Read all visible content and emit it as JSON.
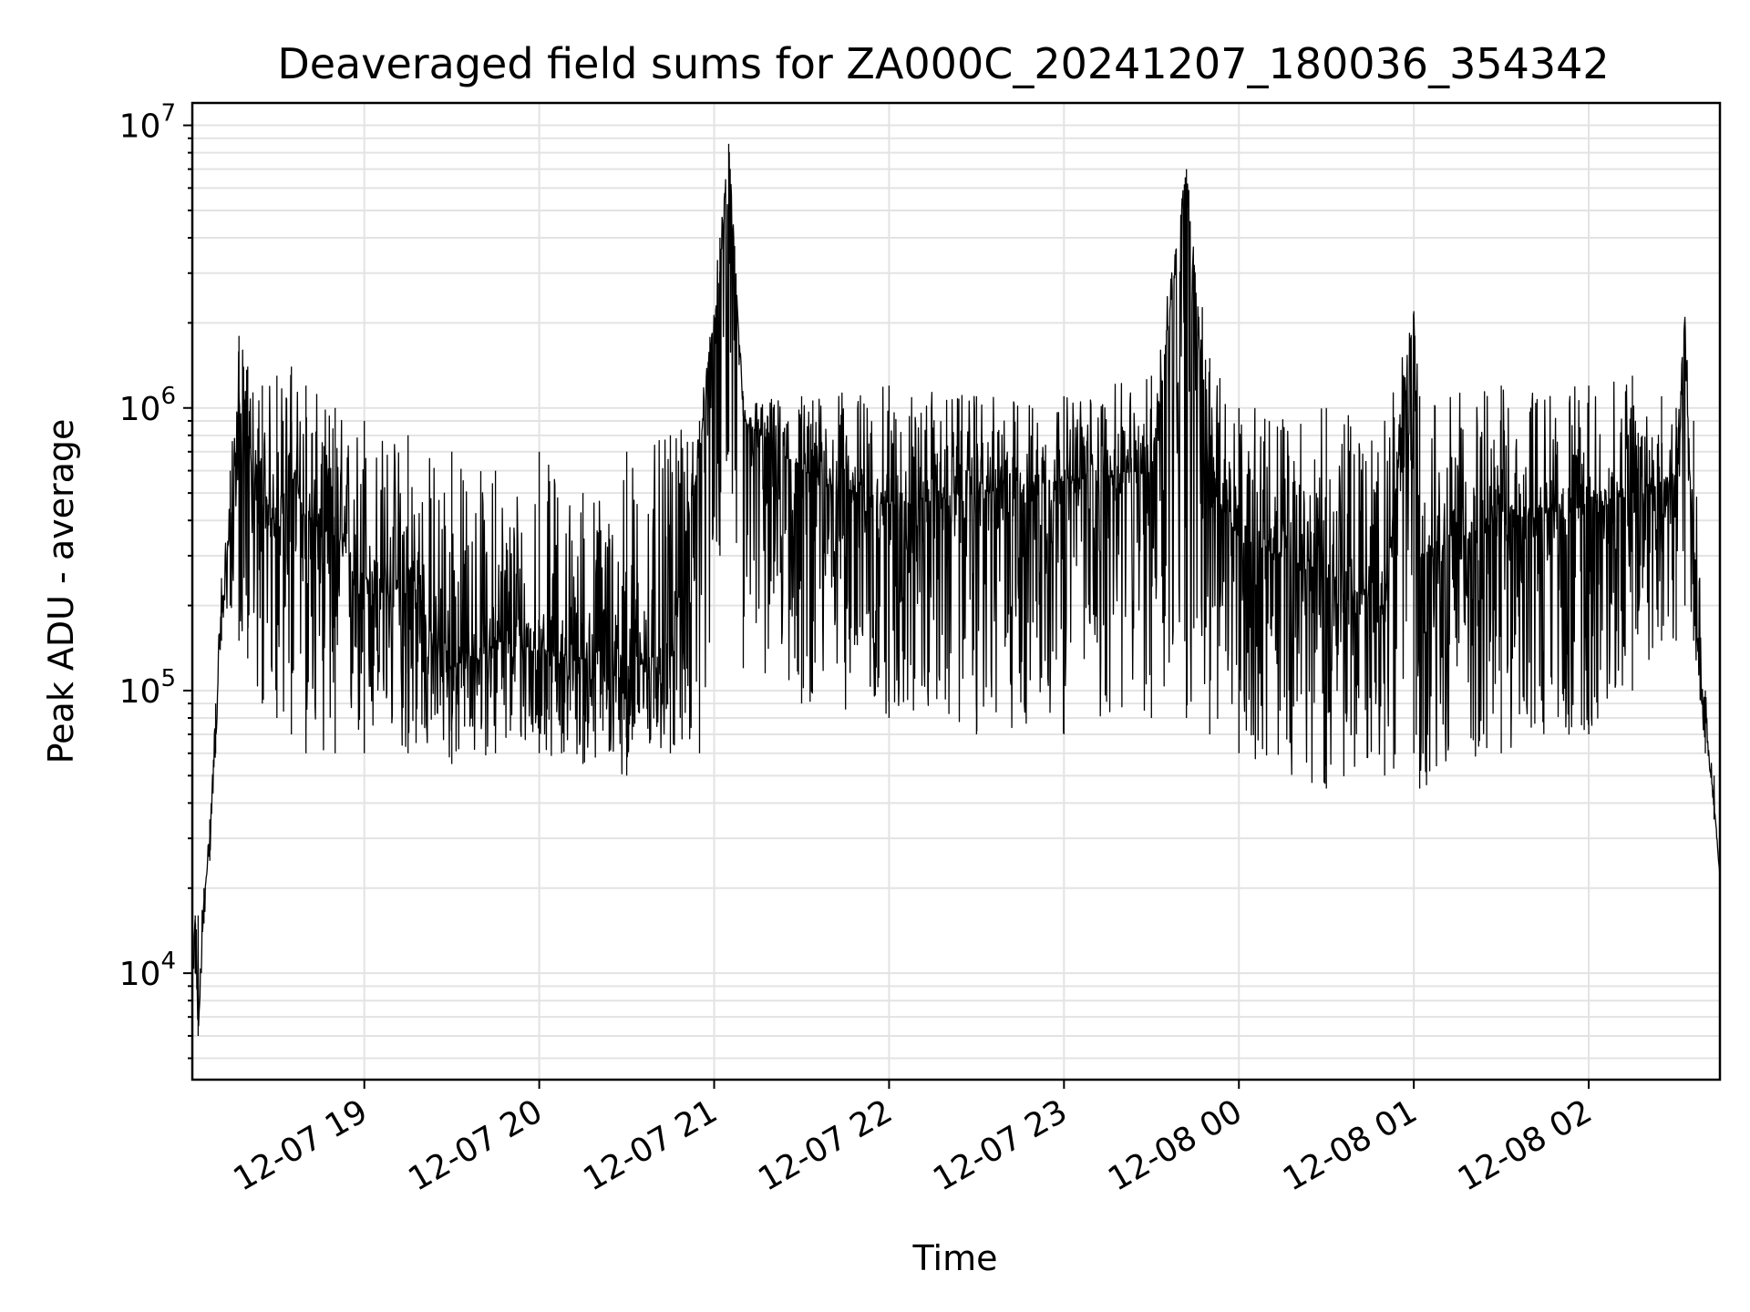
{
  "chart_data": {
    "type": "line",
    "title": "Deaveraged field sums for ZA000C_20241207_180036_354342",
    "xlabel": "Time",
    "ylabel": "Peak ADU - average",
    "yscale": "log",
    "ylim": [
      4200,
      12000000
    ],
    "xlim": [
      "2024-12-07 18:01",
      "2024-12-08 02:45"
    ],
    "x_ticks": [
      "12-07 19",
      "12-07 20",
      "12-07 21",
      "12-07 22",
      "12-07 23",
      "12-08 00",
      "12-08 01",
      "12-08 02"
    ],
    "y_ticks": [
      {
        "base": "10",
        "exp": "4"
      },
      {
        "base": "10",
        "exp": "5"
      },
      {
        "base": "10",
        "exp": "6"
      },
      {
        "base": "10",
        "exp": "7"
      }
    ],
    "grid": true,
    "line_color": "#000000",
    "series": [
      {
        "x": [
          "2024-12-07 18:01",
          "2024-12-07 18:02",
          "2024-12-07 18:03",
          "2024-12-07 18:05",
          "2024-12-07 18:07",
          "2024-12-07 18:09",
          "2024-12-07 18:11",
          "2024-12-07 18:14",
          "2024-12-07 18:17",
          "2024-12-07 18:20",
          "2024-12-07 18:25",
          "2024-12-07 18:30",
          "2024-12-07 18:35",
          "2024-12-07 18:40",
          "2024-12-07 18:50",
          "2024-12-07 19:00",
          "2024-12-07 19:15",
          "2024-12-07 19:30",
          "2024-12-07 19:45",
          "2024-12-07 20:00",
          "2024-12-07 20:15",
          "2024-12-07 20:30",
          "2024-12-07 20:45",
          "2024-12-07 20:55",
          "2024-12-07 21:02",
          "2024-12-07 21:05",
          "2024-12-07 21:10",
          "2024-12-07 21:30",
          "2024-12-07 22:00",
          "2024-12-07 22:30",
          "2024-12-07 23:00",
          "2024-12-07 23:30",
          "2024-12-07 23:42",
          "2024-12-07 23:50",
          "2024-12-08 00:00",
          "2024-12-08 00:30",
          "2024-12-08 00:50",
          "2024-12-08 01:00",
          "2024-12-08 01:02",
          "2024-12-08 01:30",
          "2024-12-08 02:00",
          "2024-12-08 02:15",
          "2024-12-08 02:25",
          "2024-12-08 02:30",
          "2024-12-08 02:33",
          "2024-12-08 02:36",
          "2024-12-08 02:40",
          "2024-12-08 02:43",
          "2024-12-08 02:45"
        ],
        "values": [
          10000,
          16000,
          6000,
          18000,
          30000,
          80000,
          180000,
          400000,
          1000000,
          800000,
          350000,
          450000,
          600000,
          400000,
          350000,
          250000,
          220000,
          120000,
          150000,
          140000,
          130000,
          120000,
          140000,
          700000,
          3000000,
          8600000,
          900000,
          600000,
          450000,
          500000,
          550000,
          600000,
          7000000,
          500000,
          350000,
          250000,
          200000,
          2200000,
          300000,
          400000,
          450000,
          500000,
          550000,
          600000,
          2100000,
          200000,
          80000,
          40000,
          22000
        ],
        "envelope_low": [
          10000,
          10000,
          6000,
          15000,
          25000,
          60000,
          150000,
          200000,
          150000,
          130000,
          90000,
          80000,
          70000,
          60000,
          60000,
          60000,
          60000,
          55000,
          60000,
          60000,
          55000,
          50000,
          60000,
          60000,
          300000,
          700000,
          120000,
          90000,
          80000,
          70000,
          70000,
          80000,
          80000,
          70000,
          60000,
          45000,
          50000,
          60000,
          45000,
          60000,
          70000,
          100000,
          150000,
          150000,
          200000,
          150000,
          60000,
          35000,
          22000
        ],
        "envelope_high": [
          10000,
          16000,
          16000,
          20000,
          35000,
          90000,
          250000,
          600000,
          1800000,
          1400000,
          1200000,
          1300000,
          1400000,
          1200000,
          1000000,
          900000,
          800000,
          700000,
          600000,
          700000,
          500000,
          700000,
          800000,
          900000,
          4000000,
          8600000,
          1100000,
          1100000,
          1200000,
          1100000,
          1100000,
          1300000,
          7000000,
          1500000,
          1000000,
          1000000,
          900000,
          2200000,
          1100000,
          1200000,
          1200000,
          1300000,
          1100000,
          1000000,
          2100000,
          900000,
          100000,
          50000,
          22000
        ]
      }
    ]
  }
}
